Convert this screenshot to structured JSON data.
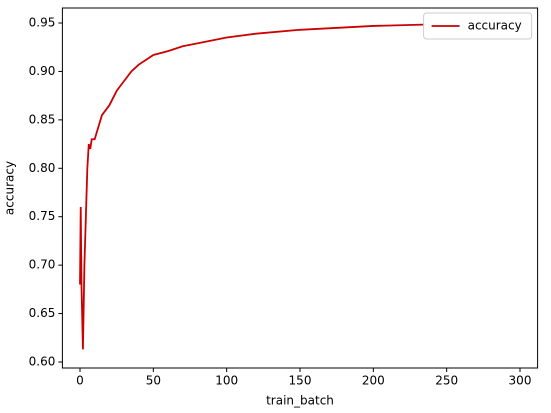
{
  "chart_data": {
    "type": "line",
    "x_label": "train_batch",
    "y_label": "accuracy",
    "x": [
      0,
      0.5,
      1,
      2,
      3,
      5,
      6,
      7,
      8,
      10,
      12,
      15,
      20,
      25,
      30,
      35,
      40,
      45,
      50,
      60,
      70,
      80,
      100,
      120,
      150,
      200,
      250,
      300
    ],
    "series": [
      {
        "name": "accuracy",
        "color": "#cc0000",
        "values": [
          0.68,
          0.76,
          0.68,
          0.613,
          0.7,
          0.8,
          0.825,
          0.82,
          0.83,
          0.83,
          0.84,
          0.855,
          0.865,
          0.88,
          0.89,
          0.9,
          0.907,
          0.912,
          0.917,
          0.921,
          0.926,
          0.929,
          0.935,
          0.939,
          0.943,
          0.947,
          0.949,
          0.951
        ]
      }
    ],
    "xlim": [
      -12,
      312
    ],
    "xticks": [
      0,
      50,
      100,
      150,
      200,
      250,
      300
    ],
    "ylim": [
      0.5938,
      0.9655
    ],
    "yticks": [
      {
        "value": 0.6,
        "label": "0.60"
      },
      0.65,
      {
        "value": 0.7,
        "label": "0.70"
      },
      0.75,
      {
        "value": 0.8,
        "label": "0.80"
      },
      0.85,
      {
        "value": 0.9,
        "label": "0.90"
      },
      0.95
    ],
    "legend": "upper right"
  }
}
